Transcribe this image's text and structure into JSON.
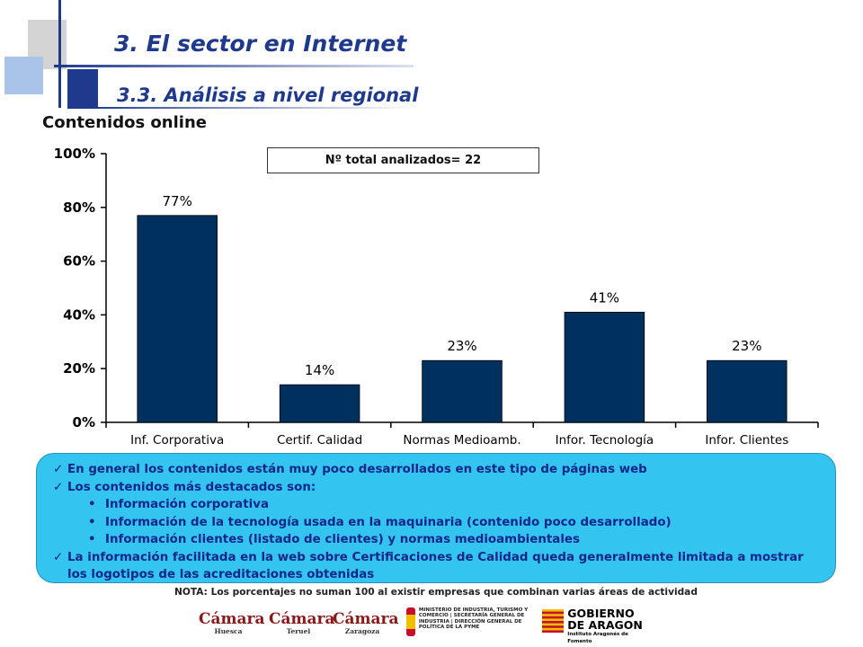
{
  "header": {
    "title": "3. El sector en Internet",
    "subtitle": "3.3. Análisis a nivel regional",
    "section_title": "Contenidos online",
    "accent": "#1f3a8c"
  },
  "chart_data": {
    "type": "bar",
    "categories": [
      "Inf. Corporativa",
      "Certif. Calidad",
      "Normas Medioamb.",
      "Infor. Tecnología",
      "Infor. Clientes"
    ],
    "values": [
      77,
      14,
      23,
      41,
      23
    ],
    "data_labels": [
      "77%",
      "14%",
      "23%",
      "41%",
      "23%"
    ],
    "y_ticks": [
      "0%",
      "20%",
      "40%",
      "60%",
      "80%",
      "100%"
    ],
    "ylim": [
      0,
      100
    ],
    "bar_color": "#00305e",
    "title": "",
    "xlabel": "",
    "ylabel": "",
    "grid": false,
    "annotation": "Nº total analizados= 22"
  },
  "notes": {
    "items": [
      {
        "kind": "check",
        "text": "En general los contenidos están muy poco desarrollados en este tipo de páginas web"
      },
      {
        "kind": "check",
        "text": "Los contenidos más destacados son:"
      },
      {
        "kind": "bullet",
        "text": "Información corporativa"
      },
      {
        "kind": "bullet",
        "text": "Información de la tecnología usada en la maquinaria (contenido poco desarrollado)"
      },
      {
        "kind": "bullet",
        "text": "Información clientes (listado de clientes) y normas medioambientales"
      },
      {
        "kind": "check",
        "text": "La información facilitada en la web sobre Certificaciones de Calidad queda generalmente limitada a mostrar los logotipos de las acreditaciones obtenidas"
      }
    ],
    "background": "#33c4ef"
  },
  "footnote": "NOTA: Los porcentajes no suman 100 al existir empresas que combinan varias áreas de actividad",
  "logos": {
    "camara1": {
      "name": "Cámara",
      "city": "Huesca"
    },
    "camara2": {
      "name": "Cámara",
      "city": "Teruel"
    },
    "camara3": {
      "name": "Cámara",
      "city": "Zaragoza"
    },
    "ministerio": "MINISTERIO DE INDUSTRIA, TURISMO Y COMERCIO | SECRETARÍA GENERAL DE INDUSTRIA | DIRECCIÓN GENERAL DE POLÍTICA DE LA PYME",
    "gobierno": {
      "line1": "GOBIERNO",
      "line2": "DE ARAGON",
      "line3": "Instituto Aragonés de Fomento"
    }
  }
}
